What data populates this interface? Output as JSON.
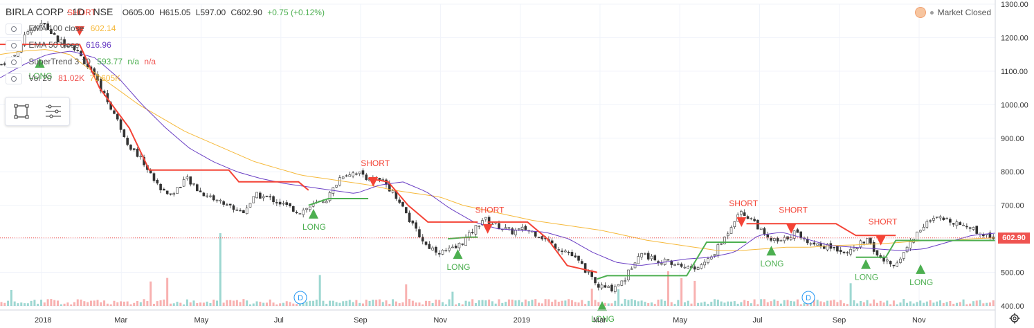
{
  "header": {
    "symbol": "BIRLA CORP · 1D · NSE",
    "open": "O605.00",
    "high": "H615.05",
    "low": "L597.00",
    "close": "C602.90",
    "change": "+0.75 (+0.12%)"
  },
  "indicators": [
    {
      "name": "EMA 100 close",
      "values": [
        "602.14"
      ],
      "color": "#f6b93b"
    },
    {
      "name": "EMA 50 close",
      "values": [
        "616.96"
      ],
      "color": "#6a3fc4"
    },
    {
      "name": "SuperTrend 3 10",
      "values": [
        "593.77",
        "n/a",
        "n/a"
      ],
      "color": "#4caf50"
    },
    {
      "name": "Vol 20",
      "values": [
        "81.02K",
        "70.605K"
      ],
      "color": "#ef5350"
    }
  ],
  "market_status": "Market Closed",
  "last_price_label": "602.90",
  "colors": {
    "up": "#26a69a",
    "down": "#ef5350",
    "supertrend_up": "#4caf50",
    "supertrend_down": "#f44336",
    "ema100": "#f6b93b",
    "ema50": "#6a3fc4",
    "last_price_line": "#ef5350"
  },
  "toolbar": {
    "icons": [
      "rectangle-select-icon",
      "drawing-list-icon"
    ]
  },
  "chart_data": {
    "type": "candlestick",
    "x_ticks": [
      "2018",
      "Mar",
      "May",
      "Jul",
      "Sep",
      "Nov",
      "2019",
      "Mar",
      "May",
      "Jul",
      "Sep",
      "Nov"
    ],
    "y_ticks": [
      "1300.00",
      "1200.00",
      "1100.00",
      "1000.00",
      "900.00",
      "800.00",
      "700.00",
      "600.00",
      "500.00",
      "400.00"
    ],
    "ylim": [
      400,
      1300
    ],
    "close_path": [
      1120,
      1150,
      1230,
      1240,
      1190,
      1180,
      1120,
      1050,
      970,
      880,
      830,
      760,
      730,
      780,
      740,
      720,
      700,
      680,
      730,
      720,
      700,
      680,
      700,
      720,
      790,
      800,
      780,
      770,
      720,
      640,
      580,
      560,
      570,
      610,
      660,
      640,
      620,
      630,
      610,
      580,
      560,
      520,
      460,
      450,
      480,
      560,
      540,
      530,
      520,
      510,
      540,
      600,
      680,
      660,
      600,
      590,
      620,
      590,
      580,
      570,
      560,
      600,
      540,
      520,
      580,
      640,
      660,
      655,
      640,
      620,
      603
    ],
    "ema100_path": [
      1150,
      1160,
      1165,
      1150,
      1100,
      1050,
      1000,
      960,
      920,
      890,
      860,
      830,
      810,
      790,
      780,
      770,
      760,
      745,
      735,
      725,
      700,
      685,
      670,
      655,
      645,
      635,
      625,
      610,
      595,
      585,
      575,
      565,
      565,
      570,
      575,
      575,
      580,
      582,
      585,
      590,
      595,
      595,
      600,
      603
    ],
    "ema50_path": [
      1080,
      1120,
      1150,
      1160,
      1140,
      1080,
      1000,
      930,
      870,
      830,
      800,
      780,
      765,
      755,
      745,
      735,
      760,
      770,
      740,
      690,
      650,
      630,
      625,
      620,
      600,
      560,
      530,
      520,
      530,
      540,
      545,
      560,
      610,
      620,
      600,
      580,
      575,
      570,
      565,
      570,
      590,
      610,
      617
    ],
    "supertrend": [
      {
        "dir": "down",
        "points": [
          [
            0,
            1180
          ],
          [
            0.08,
            1180
          ],
          [
            0.1,
            1050
          ],
          [
            0.13,
            930
          ],
          [
            0.15,
            805
          ],
          [
            0.23,
            805
          ],
          [
            0.24,
            770
          ],
          [
            0.3,
            770
          ],
          [
            0.31,
            745
          ]
        ]
      },
      {
        "dir": "up",
        "points": [
          [
            0.31,
            700
          ],
          [
            0.33,
            720
          ],
          [
            0.37,
            720
          ]
        ]
      },
      {
        "dir": "down",
        "points": [
          [
            0.37,
            780
          ],
          [
            0.39,
            770
          ],
          [
            0.41,
            700
          ],
          [
            0.43,
            650
          ],
          [
            0.48,
            650
          ]
        ]
      },
      {
        "dir": "up",
        "points": [
          [
            0.45,
            600
          ],
          [
            0.47,
            605
          ],
          [
            0.48,
            605
          ]
        ]
      },
      {
        "dir": "down",
        "points": [
          [
            0.49,
            650
          ],
          [
            0.53,
            650
          ],
          [
            0.55,
            600
          ],
          [
            0.57,
            520
          ],
          [
            0.6,
            500
          ]
        ]
      },
      {
        "dir": "up",
        "points": [
          [
            0.6,
            480
          ],
          [
            0.61,
            490
          ],
          [
            0.69,
            490
          ],
          [
            0.71,
            590
          ],
          [
            0.75,
            590
          ]
        ]
      },
      {
        "dir": "down",
        "points": [
          [
            0.75,
            645
          ],
          [
            0.84,
            645
          ],
          [
            0.86,
            610
          ],
          [
            0.9,
            610
          ]
        ]
      },
      {
        "dir": "up",
        "points": [
          [
            0.86,
            545
          ],
          [
            0.89,
            545
          ],
          [
            0.9,
            595
          ],
          [
            1.0,
            595
          ]
        ]
      }
    ],
    "signals": [
      {
        "label": "SHORT",
        "type": "short",
        "x": 0.08,
        "price": 1230
      },
      {
        "label": "LONG",
        "type": "long",
        "x": 0.04,
        "price": 1135
      },
      {
        "label": "LONG",
        "type": "long",
        "x": 0.315,
        "price": 685
      },
      {
        "label": "SHORT",
        "type": "short",
        "x": 0.375,
        "price": 780
      },
      {
        "label": "SHORT",
        "type": "short",
        "x": 0.49,
        "price": 640
      },
      {
        "label": "LONG",
        "type": "long",
        "x": 0.46,
        "price": 565
      },
      {
        "label": "LONG",
        "type": "long",
        "x": 0.605,
        "price": 410
      },
      {
        "label": "SHORT",
        "type": "short",
        "x": 0.745,
        "price": 660
      },
      {
        "label": "LONG",
        "type": "long",
        "x": 0.775,
        "price": 575
      },
      {
        "label": "SHORT",
        "type": "short",
        "x": 0.795,
        "price": 640
      },
      {
        "label": "LONG",
        "type": "long",
        "x": 0.87,
        "price": 535
      },
      {
        "label": "SHORT",
        "type": "short",
        "x": 0.885,
        "price": 605
      },
      {
        "label": "LONG",
        "type": "long",
        "x": 0.925,
        "price": 520
      }
    ],
    "dividend_markers": [
      "D",
      "D"
    ]
  }
}
